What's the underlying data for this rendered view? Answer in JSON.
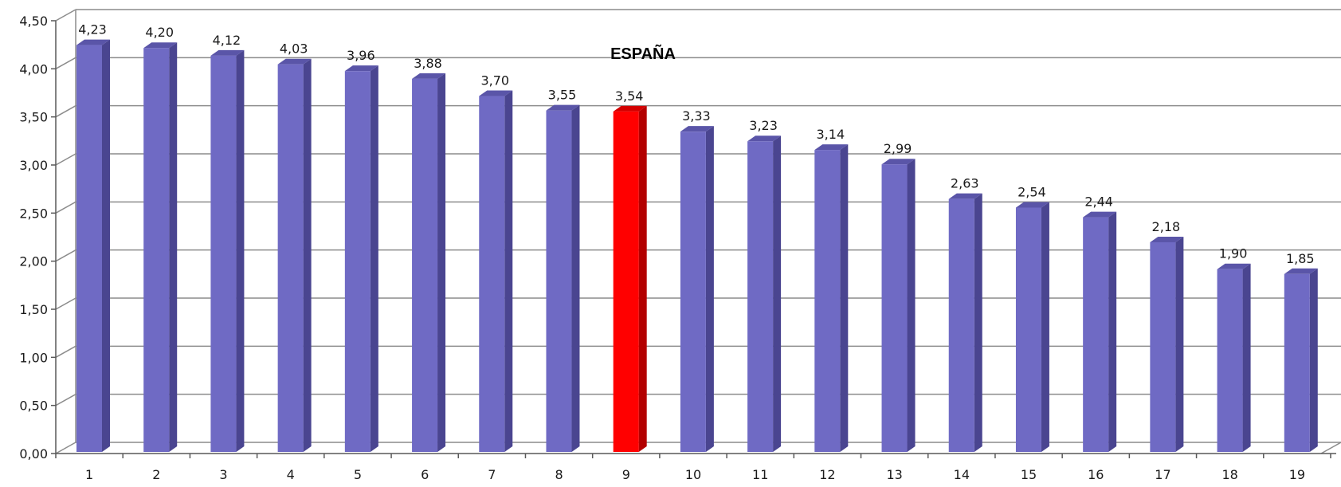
{
  "chart_data": {
    "type": "bar",
    "categories": [
      "1",
      "2",
      "3",
      "4",
      "5",
      "6",
      "7",
      "8",
      "9",
      "10",
      "11",
      "12",
      "13",
      "14",
      "15",
      "16",
      "17",
      "18",
      "19"
    ],
    "values": [
      4.23,
      4.2,
      4.12,
      4.03,
      3.96,
      3.88,
      3.7,
      3.55,
      3.54,
      3.33,
      3.23,
      3.14,
      2.99,
      2.63,
      2.54,
      2.44,
      2.18,
      1.9,
      1.85
    ],
    "data_labels": [
      "4,23",
      "4,20",
      "4,12",
      "4,03",
      "3,96",
      "3,88",
      "3,70",
      "3,55",
      "3,54",
      "3,33",
      "3,23",
      "3,14",
      "2,99",
      "2,63",
      "2,54",
      "2,44",
      "2,18",
      "1,90",
      "1,85"
    ],
    "highlight_index": 8,
    "annotation": "ESPAÑA",
    "ylim": [
      0,
      4.5
    ],
    "yticks": [
      0,
      0.5,
      1.0,
      1.5,
      2.0,
      2.5,
      3.0,
      3.5,
      4.0,
      4.5
    ],
    "ytick_labels": [
      "0,00",
      "0,50",
      "1,00",
      "1,50",
      "2,00",
      "2,50",
      "3,00",
      "3,50",
      "4,00",
      "4,50"
    ],
    "grid": true,
    "style": "3d-column",
    "colors": {
      "bar_front": "#6f6ac4",
      "bar_side": "#4a4590",
      "bar_top": "#5a55a8",
      "highlight_front": "#ff0000",
      "highlight_side": "#b30000",
      "highlight_top": "#d40000",
      "grid": "#8c8c8c",
      "axis": "#595959"
    }
  }
}
